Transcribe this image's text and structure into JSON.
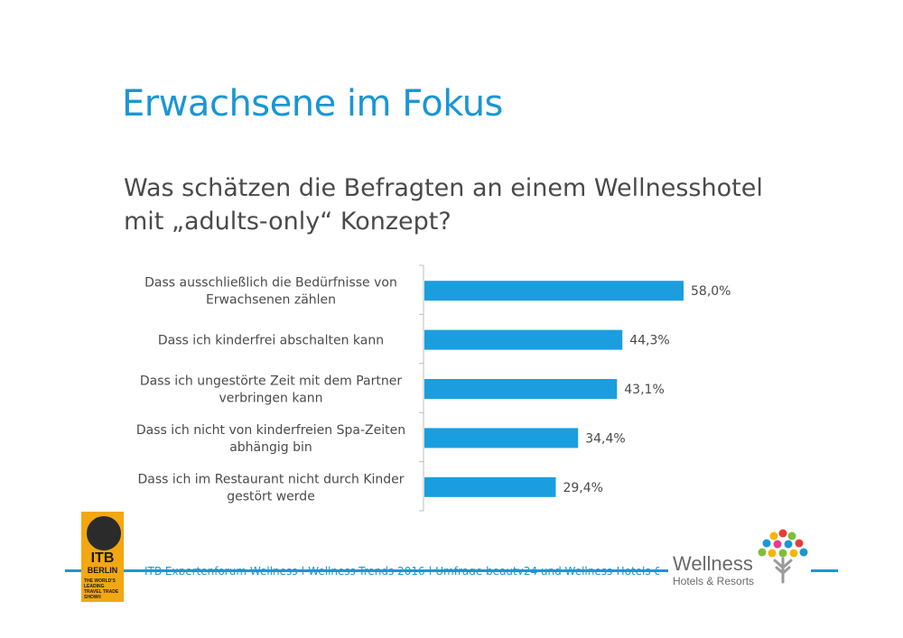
{
  "title": "Erwachsene im Fokus",
  "subtitle": "Was  schätzen die Befragten an einem Wellnesshotel mit „adults-only“ Konzept?",
  "footer": {
    "text": "ITB Expertenforum Wellness | Wellness-Trends 2016 | Umfrage beauty24 und Wellness-Hotels & Resorts"
  },
  "logos": {
    "itb": {
      "line1": "ITB",
      "line2": "BERLIN",
      "tagline": "THE WORLD'S LEADING TRAVEL TRADE SHOW®"
    },
    "wellness": {
      "line1": "Wellness",
      "line2": "Hotels & Resorts"
    }
  },
  "colors": {
    "accent": "#1a96d4",
    "bar": "#1a9ee0",
    "text": "#4a4a4a"
  },
  "chart_data": {
    "type": "bar",
    "orientation": "horizontal",
    "categories": [
      [
        "Dass ausschließlich die Bedürfnisse von",
        "Erwachsenen zählen"
      ],
      [
        "Dass ich kinderfrei abschalten kann"
      ],
      [
        "Dass ich ungestörte Zeit mit dem Partner",
        "verbringen kann"
      ],
      [
        "Dass ich nicht von kinderfreien Spa-Zeiten",
        "abhängig bin"
      ],
      [
        "Dass ich im Restaurant nicht durch Kinder",
        "gestört werde"
      ]
    ],
    "values": [
      58.0,
      44.3,
      43.1,
      34.4,
      29.4
    ],
    "value_labels": [
      "58,0%",
      "44,3%",
      "43,1%",
      "34,4%",
      "29,4%"
    ],
    "xlim": [
      0,
      70
    ],
    "grid": false,
    "legend": "none"
  }
}
